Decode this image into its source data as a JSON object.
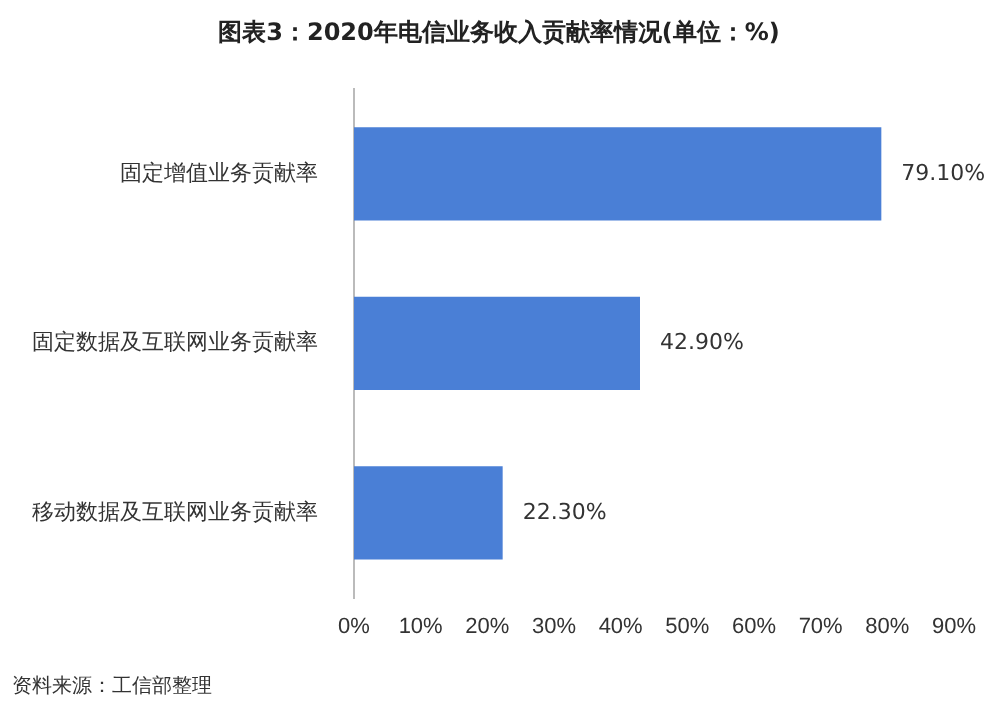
{
  "chart_data": {
    "type": "bar",
    "orientation": "horizontal",
    "title": "图表3：2020年电信业务收入贡献率情况(单位：%)",
    "categories": [
      "固定增值业务贡献率",
      "固定数据及互联网业务贡献率",
      "移动数据及互联网业务贡献率"
    ],
    "values": [
      79.1,
      42.9,
      22.3
    ],
    "value_labels": [
      "79.10%",
      "42.90%",
      "22.30%"
    ],
    "color": "#4a7fd6",
    "xlim": [
      0,
      90
    ],
    "xticks": [
      {
        "value": 0,
        "label": "0%"
      },
      {
        "value": 10,
        "label": "10%"
      },
      {
        "value": 20,
        "label": "20%"
      },
      {
        "value": 30,
        "label": "30%"
      },
      {
        "value": 40,
        "label": "40%"
      },
      {
        "value": 50,
        "label": "50%"
      },
      {
        "value": 60,
        "label": "60%"
      },
      {
        "value": 70,
        "label": "70%"
      },
      {
        "value": 80,
        "label": "80%"
      },
      {
        "value": 90,
        "label": "90%"
      }
    ],
    "grid": false,
    "legend": false,
    "annotations": [
      "资料来源：工信部整理"
    ]
  }
}
